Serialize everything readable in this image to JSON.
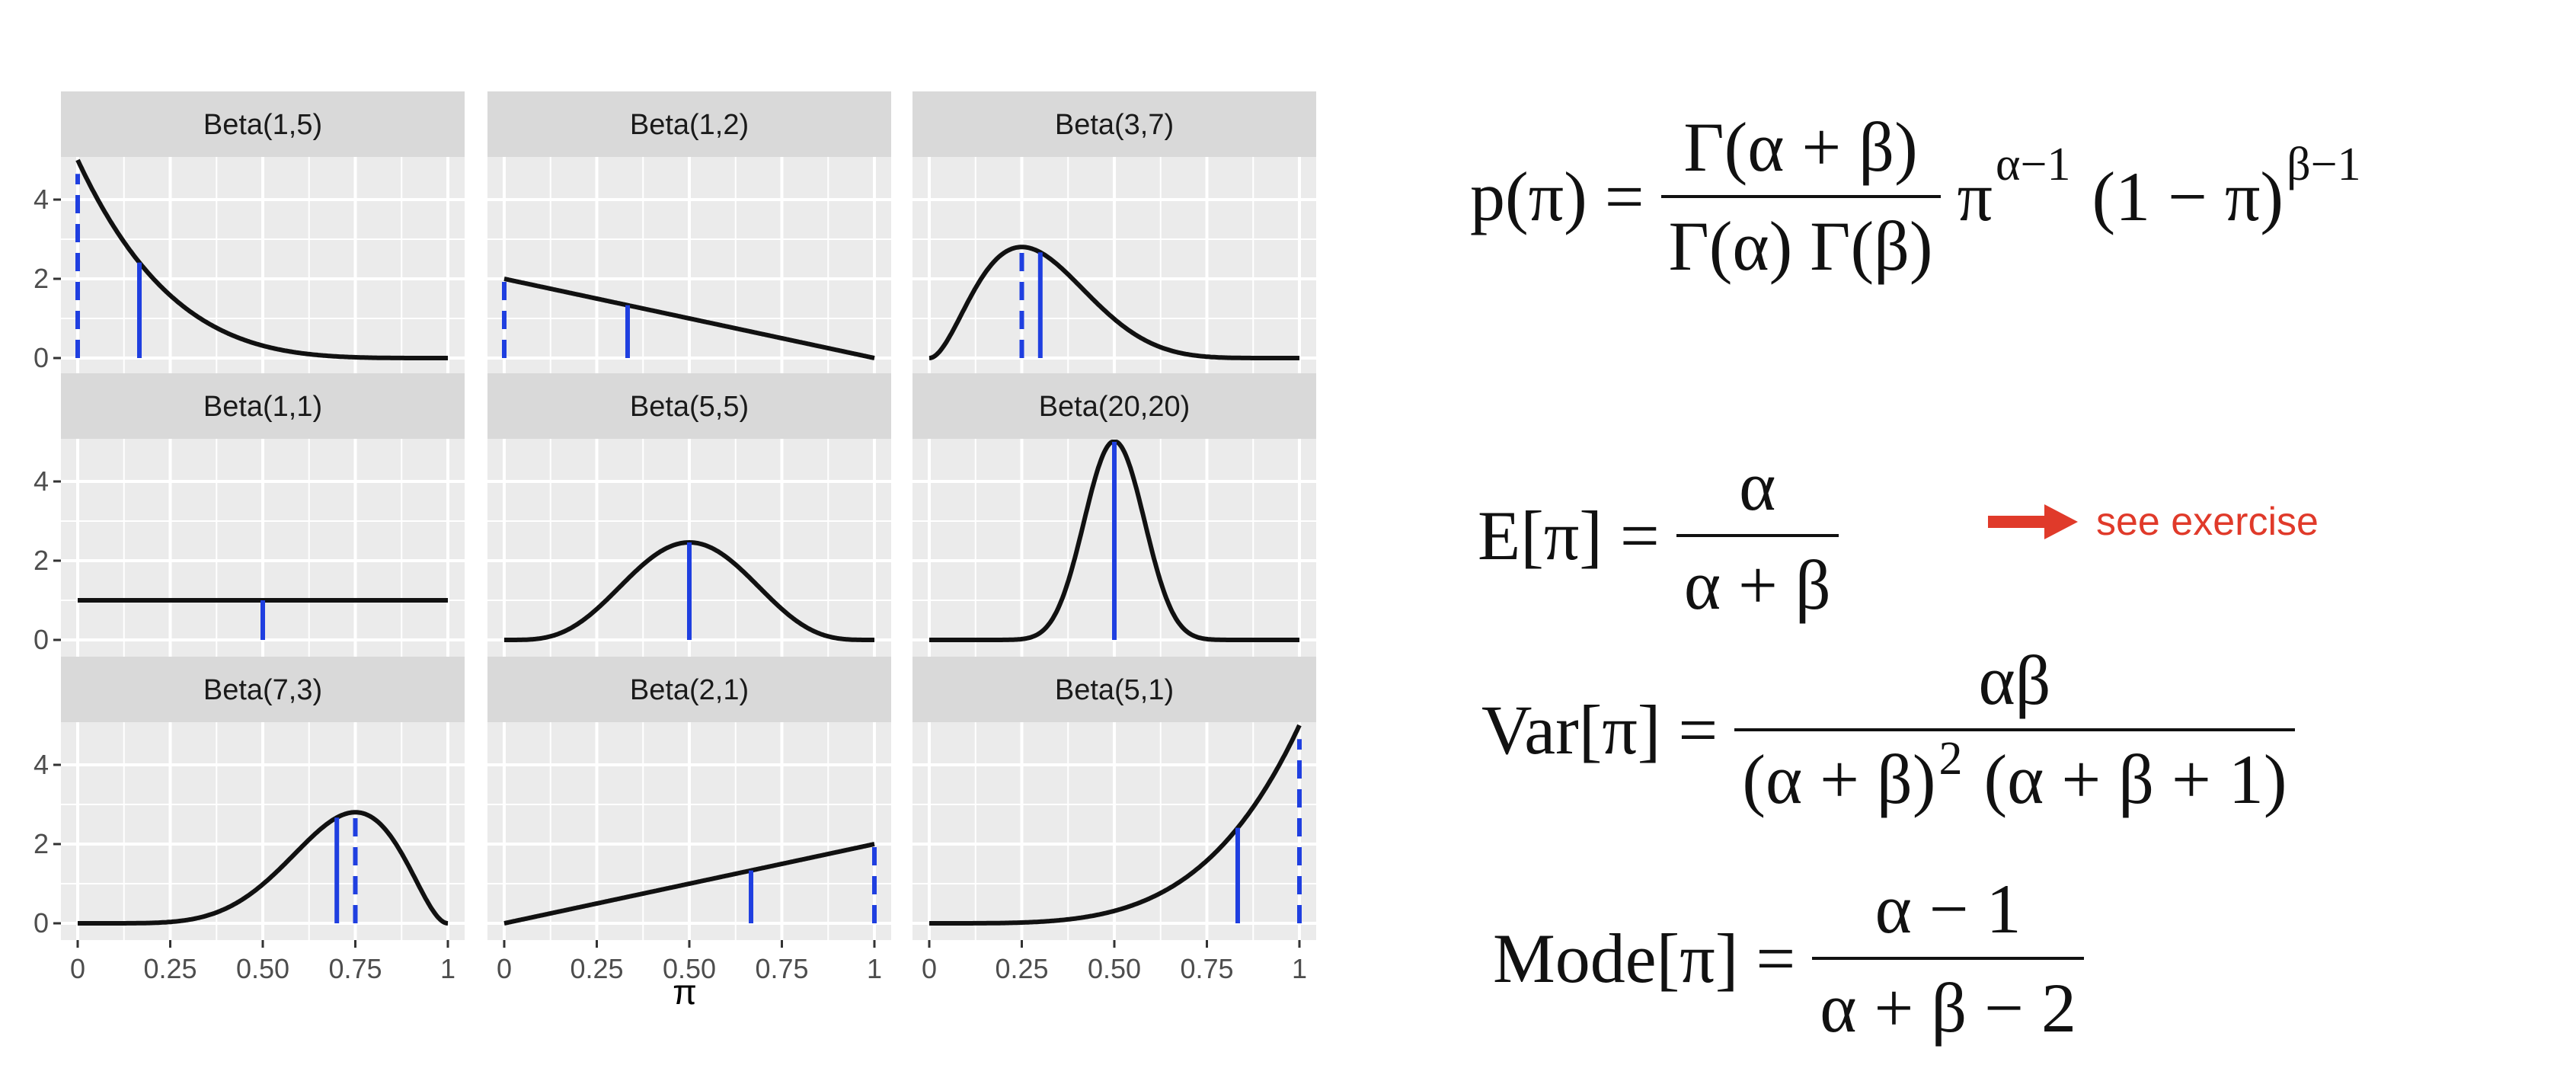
{
  "chart_data": {
    "type": "line",
    "xlabel": "π",
    "x_ticks": [
      "0",
      "0.25",
      "0.50",
      "0.75",
      "1"
    ],
    "y_ticks": [
      "0",
      "2",
      "4"
    ],
    "ylim": [
      0,
      5
    ],
    "xlim": [
      0,
      1
    ],
    "panels": [
      {
        "title": "Beta(1,5)",
        "alpha": 1,
        "beta": 5,
        "mean": 0.1667,
        "mode": 0.0
      },
      {
        "title": "Beta(1,2)",
        "alpha": 1,
        "beta": 2,
        "mean": 0.3333,
        "mode": 0.0
      },
      {
        "title": "Beta(3,7)",
        "alpha": 3,
        "beta": 7,
        "mean": 0.3,
        "mode": 0.25
      },
      {
        "title": "Beta(1,1)",
        "alpha": 1,
        "beta": 1,
        "mean": 0.5,
        "mode": null
      },
      {
        "title": "Beta(5,5)",
        "alpha": 5,
        "beta": 5,
        "mean": 0.5,
        "mode": 0.5
      },
      {
        "title": "Beta(20,20)",
        "alpha": 20,
        "beta": 20,
        "mean": 0.5,
        "mode": 0.5
      },
      {
        "title": "Beta(7,3)",
        "alpha": 7,
        "beta": 3,
        "mean": 0.7,
        "mode": 0.75
      },
      {
        "title": "Beta(2,1)",
        "alpha": 2,
        "beta": 1,
        "mean": 0.6667,
        "mode": 1.0
      },
      {
        "title": "Beta(5,1)",
        "alpha": 5,
        "beta": 1,
        "mean": 0.8333,
        "mode": 1.0
      }
    ],
    "colors": {
      "panel_bg": "#ebebeb",
      "strip_bg": "#d9d9d9",
      "grid": "#ffffff",
      "curve": "#111111",
      "marker": "#1f3fe0"
    }
  },
  "formulas": {
    "pdf": {
      "lhs": "p(π) =",
      "num": "Γ(α + β)",
      "den": "Γ(α) Γ(β)",
      "f1": "π",
      "f1_sup": "α−1",
      "f2": "(1 − π)",
      "f2_sup": "β−1"
    },
    "mean": {
      "lhs": "E[π] =",
      "num": "α",
      "den": "α + β"
    },
    "var": {
      "lhs": "Var[π] =",
      "num": "αβ",
      "den_a": "(α + β)",
      "den_sup": "2",
      "den_b": "(α + β + 1)"
    },
    "mode": {
      "lhs": "Mode[π] =",
      "num": "α − 1",
      "den": "α + β − 2"
    }
  },
  "annotation": {
    "text": "see exercise",
    "color": "#e03a2a"
  }
}
